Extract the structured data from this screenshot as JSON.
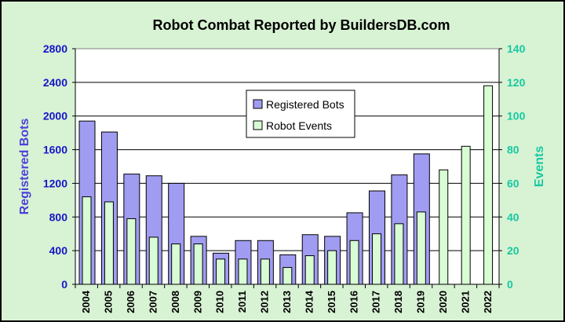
{
  "chart_data": {
    "type": "bar",
    "title": "Robot Combat Reported by BuildersDB.com",
    "ylabel": "Registered Bots",
    "y2label": "Events",
    "ylim": [
      0,
      2800
    ],
    "y2lim": [
      0,
      140
    ],
    "yticks": [
      0,
      400,
      800,
      1200,
      1600,
      2000,
      2400,
      2800
    ],
    "y2ticks": [
      0,
      20,
      40,
      60,
      80,
      100,
      120,
      140
    ],
    "categories": [
      "2004",
      "2005",
      "2006",
      "2007",
      "2008",
      "2009",
      "2010",
      "2011",
      "2012",
      "2013",
      "2014",
      "2015",
      "2016",
      "2017",
      "2018",
      "2019",
      "2020",
      "2021",
      "2022"
    ],
    "series": [
      {
        "name": "Registered Bots",
        "axis": "left",
        "color": "#a09cf2",
        "values": [
          1940,
          1810,
          1310,
          1290,
          1200,
          570,
          370,
          520,
          520,
          350,
          590,
          570,
          850,
          1110,
          1300,
          1550,
          null,
          null,
          null
        ]
      },
      {
        "name": "Robot Events",
        "axis": "right",
        "color": "#d8fcd4",
        "values": [
          52,
          49,
          39,
          28,
          24,
          24,
          15,
          15,
          15,
          10,
          17,
          20,
          26,
          30,
          36,
          43,
          68,
          82,
          118
        ]
      }
    ],
    "grid": true,
    "legend": "top-center"
  }
}
